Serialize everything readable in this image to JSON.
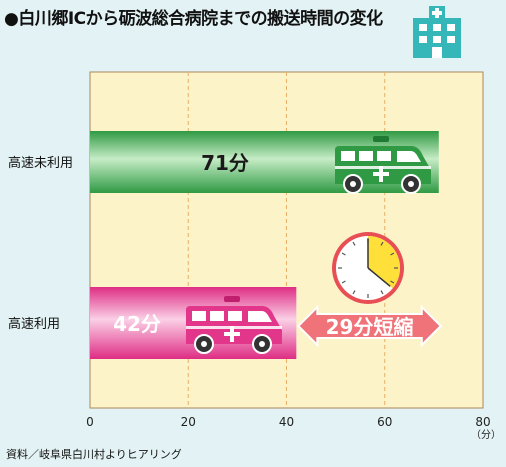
{
  "title": "●白川郷ICから砺波総合病院までの搬送時間の変化",
  "source": "資料／岐阜県白川村よりヒアリング",
  "icons": {
    "header": "hospital-icon",
    "vehicle": "ambulance-icon",
    "clock": "clock-icon"
  },
  "colors": {
    "plot_background": "#fdf3c9",
    "grid": "#e9b069",
    "expressway_unused": "#3bab4e",
    "expressway_used": "#e8378a",
    "savings_arrow": "#ef7378",
    "clock_saved": "#ffe03a",
    "hospital": "#35b7ba"
  },
  "chart_data": {
    "type": "bar",
    "orientation": "horizontal",
    "title": "●白川郷ICから砺波総合病院までの搬送時間の変化",
    "categories": [
      "高速未利用",
      "高速利用"
    ],
    "values": [
      71,
      42
    ],
    "value_labels": [
      "71分",
      "42分"
    ],
    "xlabel": "",
    "unit_label": "（分）",
    "xlim": [
      0,
      80
    ],
    "xticks": [
      0,
      20,
      40,
      60,
      80
    ],
    "grid": true,
    "annotation": {
      "text": "29分短縮",
      "from": 42,
      "to": 71,
      "clock_fraction_saved": 0.36
    }
  }
}
